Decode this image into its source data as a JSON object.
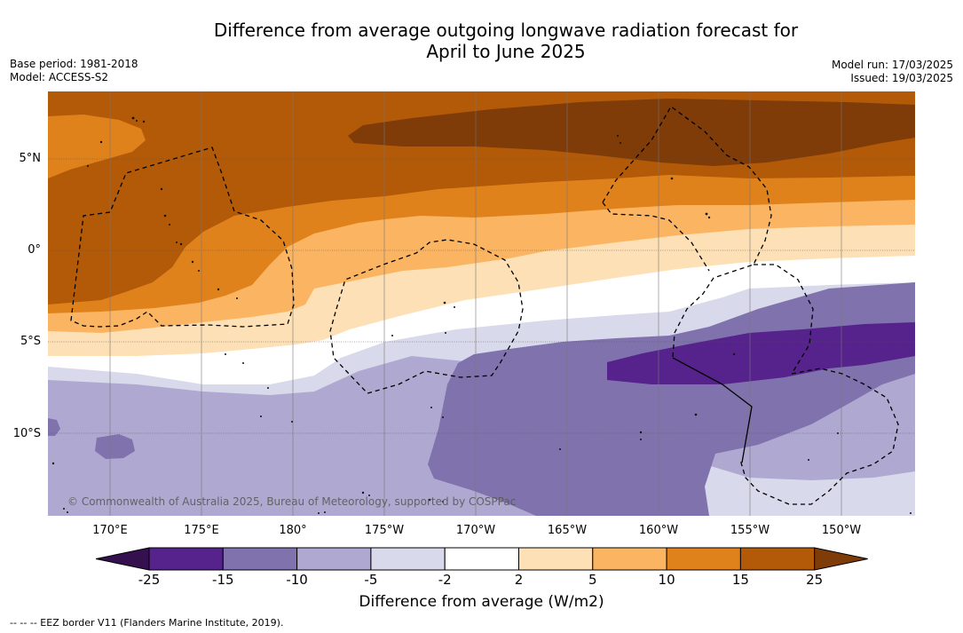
{
  "title": {
    "line1": "Difference from average outgoing longwave radiation forecast for",
    "line2": "April to June 2025"
  },
  "meta": {
    "base_period": "Base period: 1981-2018",
    "model": "Model: ACCESS-S2",
    "model_run": "Model run: 17/03/2025",
    "issued": "Issued: 19/03/2025"
  },
  "axes": {
    "lat_labels": [
      "5°N",
      "0°",
      "5°S",
      "10°S"
    ],
    "lon_labels": [
      "170°E",
      "175°E",
      "180°",
      "175°W",
      "170°W",
      "165°W",
      "160°W",
      "155°W",
      "150°W"
    ]
  },
  "credit": "© Commonwealth of Australia 2025, Bureau of Meteorology, supported by COSPPac",
  "colorbar": {
    "labels": [
      "-25",
      "-15",
      "-10",
      "-5",
      "-2",
      "2",
      "5",
      "10",
      "15",
      "25"
    ],
    "colors": [
      "#34104f",
      "#56228c",
      "#8072ad",
      "#afa9d1",
      "#d9d9ec",
      "#ffffff",
      "#fde0b5",
      "#fbb462",
      "#e0821c",
      "#b35a08",
      "#7f3b08"
    ],
    "title": "Difference from average (W/m2)"
  },
  "legend": "--  --  -- EEZ border V11 (Flanders Marine Institute, 2019)."
}
